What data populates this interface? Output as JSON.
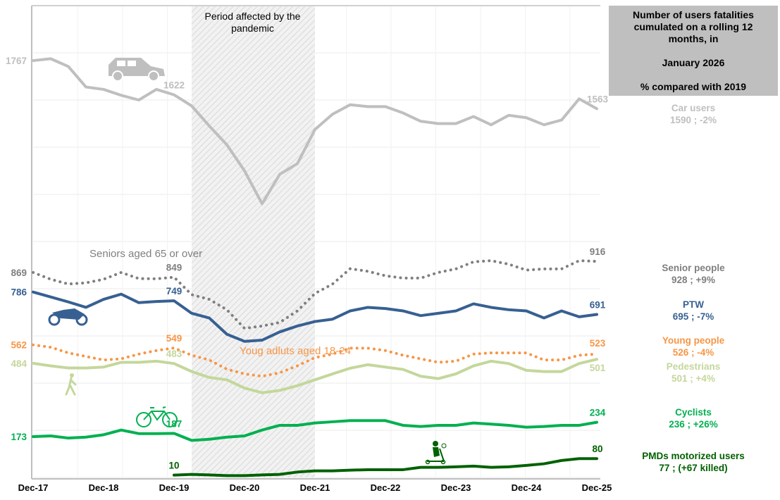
{
  "info_box": {
    "line1": "Number of users fatalities cumulated on a rolling 12 months, in",
    "date": "January 2026",
    "comparison": "% compared with 2019"
  },
  "pandemic": {
    "label": "Period affected by the pandemic",
    "start": "2020-03",
    "end": "2021-12"
  },
  "legend": [
    {
      "name": "Car users",
      "value": "1590 ; -2%",
      "color": "#bfbfbf"
    },
    {
      "name": "Senior people",
      "value": "928 ; +9%",
      "color": "#7f7f7f"
    },
    {
      "name": "PTW",
      "value": "695 ; -7%",
      "color": "#376092"
    },
    {
      "name": "Young people",
      "value": "526 ; -4%",
      "color": "#f79646"
    },
    {
      "name": "Pedestrians",
      "value": "501 ; +4%",
      "color": "#c4d79b"
    },
    {
      "name": "Cyclists",
      "value": "236 ; +26%",
      "color": "#00b050"
    },
    {
      "name": "PMDs motorized users",
      "value": "77 ; (+67 killed)",
      "color": "#006100"
    }
  ],
  "chart_data": {
    "type": "line",
    "xlabel": "",
    "ylabel": "",
    "ylim": [
      0,
      2000
    ],
    "grid": true,
    "x_tick_labels": [
      "Dec-17",
      "Dec-18",
      "Dec-19",
      "Dec-20",
      "Dec-21",
      "Dec-22",
      "Dec-23",
      "Dec-24",
      "Dec-25"
    ],
    "x": [
      "2017-12",
      "2018-03",
      "2018-06",
      "2018-09",
      "2018-12",
      "2019-03",
      "2019-06",
      "2019-09",
      "2019-12",
      "2020-03",
      "2020-06",
      "2020-09",
      "2020-12",
      "2021-03",
      "2021-06",
      "2021-09",
      "2021-12",
      "2022-03",
      "2022-06",
      "2022-09",
      "2022-12",
      "2023-03",
      "2023-06",
      "2023-09",
      "2023-12",
      "2024-03",
      "2024-06",
      "2024-09",
      "2024-12",
      "2025-03",
      "2025-06",
      "2025-09",
      "2025-12"
    ],
    "annotations": [
      {
        "text": "Seniors aged 65 or over",
        "color": "#7f7f7f"
      },
      {
        "text": "Youg adluts aged 18-24",
        "color": "#f79646"
      }
    ],
    "series": [
      {
        "key": "car",
        "color": "#bfbfbf",
        "dash": false,
        "icon": "car-icon",
        "values": [
          1767,
          1775,
          1742,
          1655,
          1645,
          1620,
          1600,
          1645,
          1622,
          1575,
          1490,
          1410,
          1300,
          1160,
          1285,
          1330,
          1475,
          1540,
          1580,
          1572,
          1572,
          1545,
          1510,
          1500,
          1500,
          1530,
          1495,
          1535,
          1525,
          1495,
          1515,
          1605,
          1563
        ],
        "labels": {
          "start": "1767",
          "mid": "1622",
          "end": "1563"
        }
      },
      {
        "key": "seniors",
        "color": "#7f7f7f",
        "dash": true,
        "icon": null,
        "values": [
          869,
          840,
          820,
          825,
          840,
          869,
          843,
          842,
          849,
          775,
          755,
          711,
          632,
          642,
          657,
          706,
          780,
          820,
          885,
          874,
          855,
          845,
          845,
          869,
          884,
          914,
          919,
          904,
          879,
          884,
          884,
          919,
          916
        ],
        "labels": {
          "start": "869",
          "mid": "849",
          "end": "916"
        }
      },
      {
        "key": "ptw",
        "color": "#376092",
        "dash": false,
        "icon": "motorbike-icon",
        "values": [
          786,
          765,
          744,
          721,
          755,
          777,
          741,
          746,
          749,
          696,
          676,
          607,
          577,
          582,
          617,
          642,
          661,
          671,
          706,
          721,
          716,
          706,
          686,
          696,
          706,
          736,
          721,
          711,
          706,
          676,
          706,
          681,
          691
        ],
        "labels": {
          "start": "786",
          "mid": "749",
          "end": "691"
        }
      },
      {
        "key": "young",
        "color": "#f79646",
        "dash": true,
        "icon": null,
        "values": [
          562,
          552,
          528,
          513,
          498,
          503,
          523,
          538,
          549,
          518,
          498,
          459,
          439,
          429,
          444,
          473,
          508,
          523,
          548,
          548,
          538,
          518,
          503,
          488,
          493,
          523,
          528,
          528,
          528,
          498,
          498,
          518,
          523
        ],
        "labels": {
          "start": "562",
          "mid": "549",
          "end": "523"
        }
      },
      {
        "key": "pedestrians",
        "color": "#c4d79b",
        "dash": false,
        "icon": "pedestrian-icon",
        "values": [
          484,
          473,
          464,
          464,
          468,
          488,
          488,
          493,
          483,
          449,
          424,
          414,
          379,
          359,
          369,
          389,
          414,
          439,
          463,
          478,
          468,
          458,
          429,
          419,
          439,
          473,
          493,
          483,
          454,
          449,
          449,
          483,
          501
        ],
        "labels": {
          "start": "484",
          "mid": "483",
          "end": "501"
        }
      },
      {
        "key": "cyclists",
        "color": "#00b050",
        "dash": false,
        "icon": "bicycle-icon",
        "values": [
          173,
          176,
          167,
          171,
          181,
          201,
          186,
          186,
          187,
          157,
          162,
          171,
          176,
          201,
          221,
          221,
          231,
          236,
          241,
          241,
          241,
          221,
          216,
          221,
          221,
          231,
          226,
          221,
          213,
          216,
          221,
          221,
          234
        ],
        "labels": {
          "start": "173",
          "mid": "187",
          "end": "234"
        }
      },
      {
        "key": "pmd",
        "color": "#006100",
        "dash": false,
        "icon": "scooter-icon",
        "values": [
          null,
          null,
          null,
          null,
          null,
          null,
          null,
          null,
          10,
          13,
          11,
          8,
          8,
          11,
          13,
          23,
          28,
          28,
          31,
          33,
          33,
          33,
          43,
          43,
          45,
          48,
          43,
          45,
          51,
          58,
          72,
          80,
          80
        ],
        "labels": {
          "start": null,
          "mid": "10",
          "end": "80"
        }
      }
    ]
  }
}
